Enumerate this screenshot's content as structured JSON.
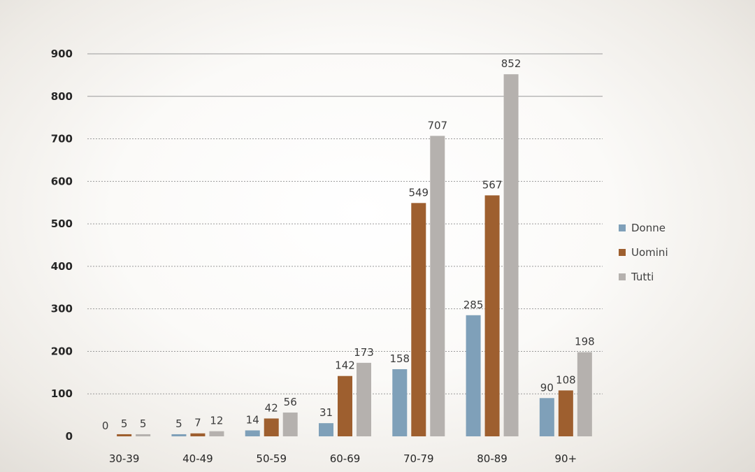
{
  "chart_data": {
    "type": "bar",
    "categories": [
      "30-39",
      "40-49",
      "50-59",
      "60-69",
      "70-79",
      "80-89",
      "90+"
    ],
    "series": [
      {
        "name": "Donne",
        "values": [
          0,
          5,
          14,
          31,
          158,
          285,
          90
        ],
        "color": "#7fa0b9"
      },
      {
        "name": "Uomini",
        "values": [
          5,
          7,
          42,
          142,
          549,
          567,
          108
        ],
        "color": "#9e5f2f"
      },
      {
        "name": "Tutti",
        "values": [
          5,
          12,
          56,
          173,
          707,
          852,
          198
        ],
        "color": "#b5b1ae"
      }
    ],
    "y_ticks": [
      0,
      100,
      200,
      300,
      400,
      500,
      600,
      700,
      800,
      900
    ],
    "ylim": [
      0,
      900
    ],
    "grid": true,
    "legend_position": "right"
  }
}
